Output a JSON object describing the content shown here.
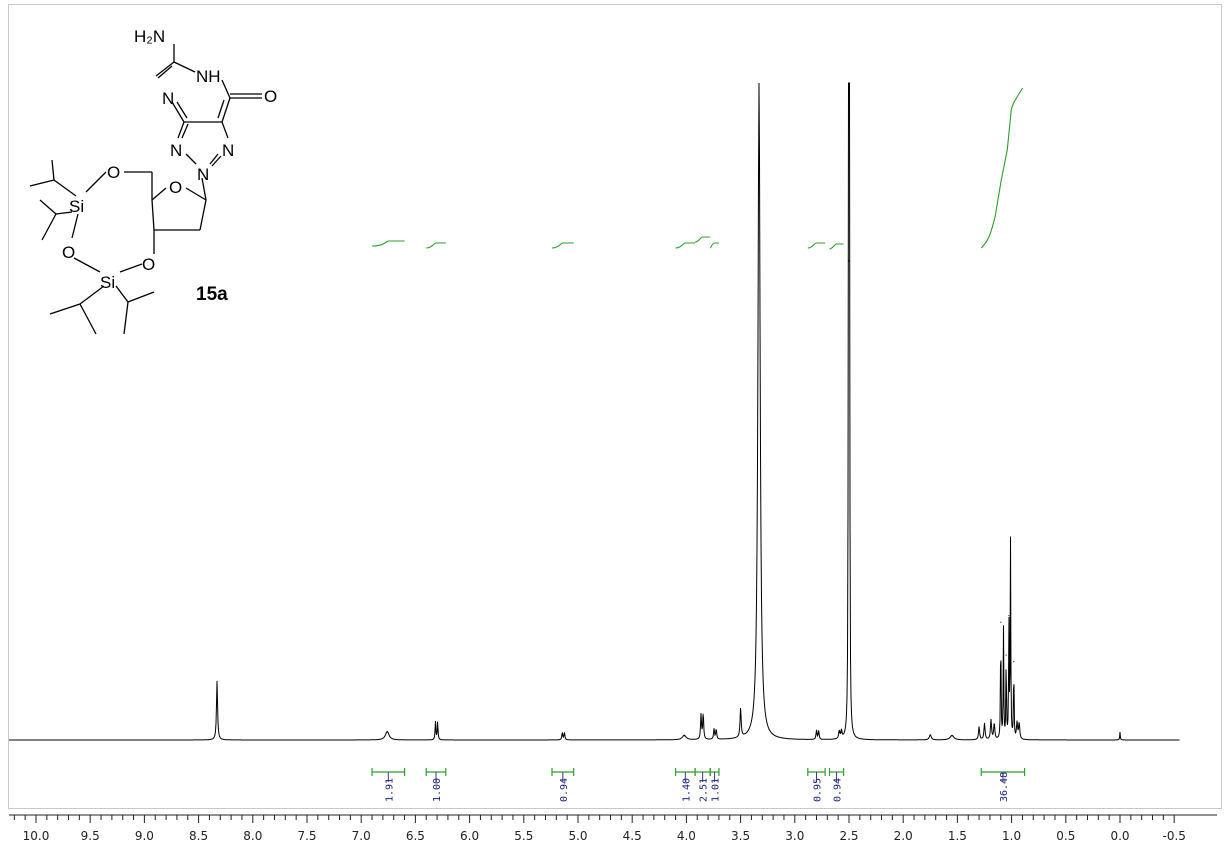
{
  "chart_data": {
    "type": "line",
    "title": "",
    "xlabel": "",
    "ylabel": "",
    "xlim": [
      10.3,
      -0.55
    ],
    "x_ticks": [
      "10.0",
      "9.5",
      "9.0",
      "8.5",
      "8.0",
      "7.5",
      "7.0",
      "6.5",
      "6.0",
      "5.5",
      "5.0",
      "4.5",
      "4.0",
      "3.5",
      "3.0",
      "2.5",
      "2.0",
      "1.5",
      "1.0",
      "0.5",
      "0.0",
      "-0.5"
    ],
    "x_tick_values": [
      10.0,
      9.5,
      9.0,
      8.5,
      8.0,
      7.5,
      7.0,
      6.5,
      6.0,
      5.5,
      5.0,
      4.5,
      4.0,
      3.5,
      3.0,
      2.5,
      2.0,
      1.5,
      1.0,
      0.5,
      0.0,
      -0.5
    ],
    "y_relative_max": 1.0,
    "peaks": [
      {
        "ppm": 8.33,
        "height": 0.09,
        "width": 0.006
      },
      {
        "ppm": 6.76,
        "height": 0.013,
        "width": 0.02
      },
      {
        "ppm": 6.315,
        "height": 0.028,
        "width": 0.004
      },
      {
        "ppm": 6.295,
        "height": 0.028,
        "width": 0.004
      },
      {
        "ppm": 5.145,
        "height": 0.011,
        "width": 0.005
      },
      {
        "ppm": 5.125,
        "height": 0.011,
        "width": 0.005
      },
      {
        "ppm": 4.02,
        "height": 0.007,
        "width": 0.02
      },
      {
        "ppm": 3.865,
        "height": 0.038,
        "width": 0.005
      },
      {
        "ppm": 3.845,
        "height": 0.04,
        "width": 0.005
      },
      {
        "ppm": 3.745,
        "height": 0.016,
        "width": 0.005
      },
      {
        "ppm": 3.725,
        "height": 0.016,
        "width": 0.005
      },
      {
        "ppm": 3.5,
        "height": 0.045,
        "width": 0.006
      },
      {
        "ppm": 3.33,
        "height": 1.0,
        "width": 0.012
      },
      {
        "ppm": 2.8,
        "height": 0.014,
        "width": 0.005
      },
      {
        "ppm": 2.78,
        "height": 0.014,
        "width": 0.005
      },
      {
        "ppm": 2.59,
        "height": 0.012,
        "width": 0.006
      },
      {
        "ppm": 2.57,
        "height": 0.012,
        "width": 0.006
      },
      {
        "ppm": 2.505,
        "height": 0.73,
        "width": 0.003
      },
      {
        "ppm": 2.5,
        "height": 0.73,
        "width": 0.003
      },
      {
        "ppm": 2.495,
        "height": 0.73,
        "width": 0.003
      },
      {
        "ppm": 1.75,
        "height": 0.008,
        "width": 0.01
      },
      {
        "ppm": 1.55,
        "height": 0.007,
        "width": 0.02
      },
      {
        "ppm": 1.3,
        "height": 0.02,
        "width": 0.006
      },
      {
        "ppm": 1.25,
        "height": 0.025,
        "width": 0.006
      },
      {
        "ppm": 1.19,
        "height": 0.03,
        "width": 0.006
      },
      {
        "ppm": 1.16,
        "height": 0.025,
        "width": 0.006
      },
      {
        "ppm": 1.1,
        "height": 0.18,
        "width": 0.003
      },
      {
        "ppm": 1.075,
        "height": 0.17,
        "width": 0.003
      },
      {
        "ppm": 1.05,
        "height": 0.13,
        "width": 0.003
      },
      {
        "ppm": 1.025,
        "height": 0.19,
        "width": 0.003
      },
      {
        "ppm": 1.01,
        "height": 0.3,
        "width": 0.003
      },
      {
        "ppm": 0.98,
        "height": 0.12,
        "width": 0.003
      },
      {
        "ppm": 0.95,
        "height": 0.025,
        "width": 0.006
      },
      {
        "ppm": 0.93,
        "height": 0.025,
        "width": 0.006
      },
      {
        "ppm": 0.0,
        "height": 0.012,
        "width": 0.003
      }
    ],
    "integrals": [
      {
        "from": 6.9,
        "to": 6.6,
        "value": "1.91"
      },
      {
        "from": 6.4,
        "to": 6.22,
        "value": "1.00"
      },
      {
        "from": 5.24,
        "to": 5.04,
        "value": "0.94"
      },
      {
        "from": 4.1,
        "to": 3.92,
        "value": "1.40"
      },
      {
        "from": 3.92,
        "to": 3.78,
        "value": "2.51"
      },
      {
        "from": 3.78,
        "to": 3.7,
        "value": "1.01"
      },
      {
        "from": 2.88,
        "to": 2.72,
        "value": "0.95"
      },
      {
        "from": 2.68,
        "to": 2.55,
        "value": "0.94"
      },
      {
        "from": 1.28,
        "to": 0.88,
        "value": "36.48"
      }
    ],
    "colors": {
      "spectrum": "#000000",
      "integral": "#2e9e2e",
      "integral_label": "#1a237e",
      "axis": "#222222"
    }
  },
  "structure": {
    "compound_label": "15a",
    "atom_labels": {
      "H2N": "H₂N",
      "NH": "NH",
      "O_carbonyl": "O",
      "N_left": "N",
      "N_bottom_left": "N",
      "N_bottom_center": "N",
      "N_bottom_right": "N",
      "O_ring": "O",
      "O_top": "O",
      "Si_top": "Si",
      "O_left": "O",
      "Si_bottom": "Si",
      "O_right": "O"
    }
  }
}
